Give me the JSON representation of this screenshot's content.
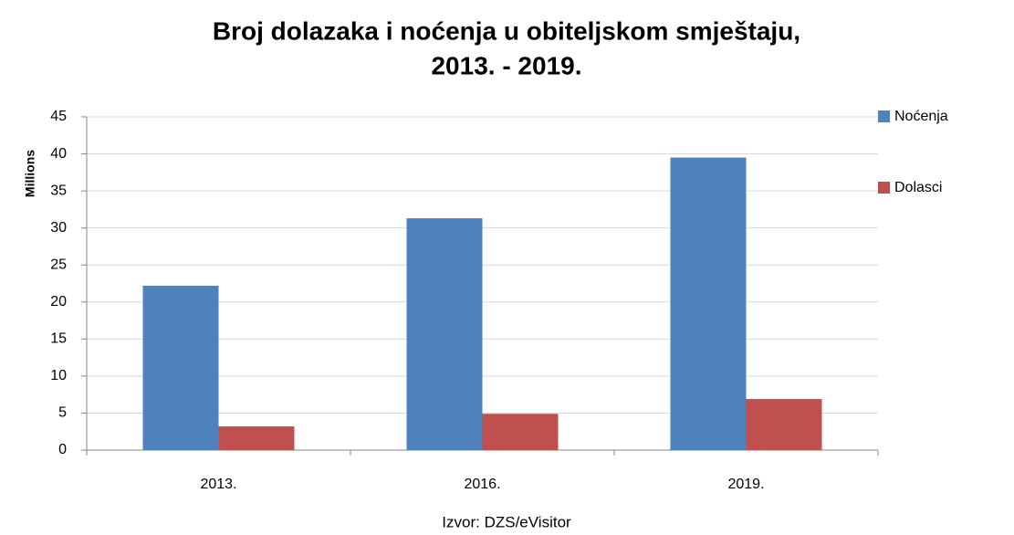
{
  "chart_data": {
    "type": "bar",
    "title": [
      "Broj dolazaka i noćenja u obiteljskom smještaju,",
      "2013. - 2019."
    ],
    "y_label": "Millions",
    "source": "Izvor: DZS/eVisitor",
    "categories": [
      "2013.",
      "2016.",
      "2019."
    ],
    "series": [
      {
        "name": "Noćenja",
        "color": "#4f81bd",
        "values": [
          22.2,
          31.3,
          39.5
        ]
      },
      {
        "name": "Dolasci",
        "color": "#c0504d",
        "values": [
          3.2,
          4.9,
          6.9
        ]
      }
    ],
    "ylim": [
      0,
      45
    ],
    "yticks": [
      0,
      5,
      10,
      15,
      20,
      25,
      30,
      35,
      40,
      45
    ],
    "grid": true,
    "legend": "right"
  }
}
